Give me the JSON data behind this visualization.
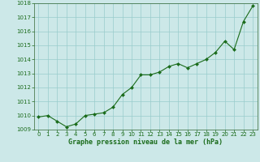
{
  "x": [
    0,
    1,
    2,
    3,
    4,
    5,
    6,
    7,
    8,
    9,
    10,
    11,
    12,
    13,
    14,
    15,
    16,
    17,
    18,
    19,
    20,
    21,
    22,
    23
  ],
  "y": [
    1009.9,
    1010.0,
    1009.6,
    1009.2,
    1009.4,
    1010.0,
    1010.1,
    1010.2,
    1010.6,
    1011.5,
    1012.0,
    1012.9,
    1012.9,
    1013.1,
    1013.5,
    1013.7,
    1013.4,
    1013.7,
    1014.0,
    1014.5,
    1015.3,
    1014.7,
    1016.7,
    1017.8
  ],
  "line_color": "#1a6b1a",
  "marker_color": "#1a6b1a",
  "bg_color": "#cce8e8",
  "grid_color": "#99cccc",
  "xlabel": "Graphe pression niveau de la mer (hPa)",
  "xlabel_color": "#1a6b1a",
  "ylim": [
    1009,
    1018
  ],
  "xlim_min": -0.5,
  "xlim_max": 23.5,
  "yticks": [
    1009,
    1010,
    1011,
    1012,
    1013,
    1014,
    1015,
    1016,
    1017,
    1018
  ],
  "xticks": [
    0,
    1,
    2,
    3,
    4,
    5,
    6,
    7,
    8,
    9,
    10,
    11,
    12,
    13,
    14,
    15,
    16,
    17,
    18,
    19,
    20,
    21,
    22,
    23
  ],
  "tick_color": "#1a6b1a",
  "tick_fontsize": 5.0,
  "xlabel_fontsize": 6.0,
  "spine_color": "#336633"
}
